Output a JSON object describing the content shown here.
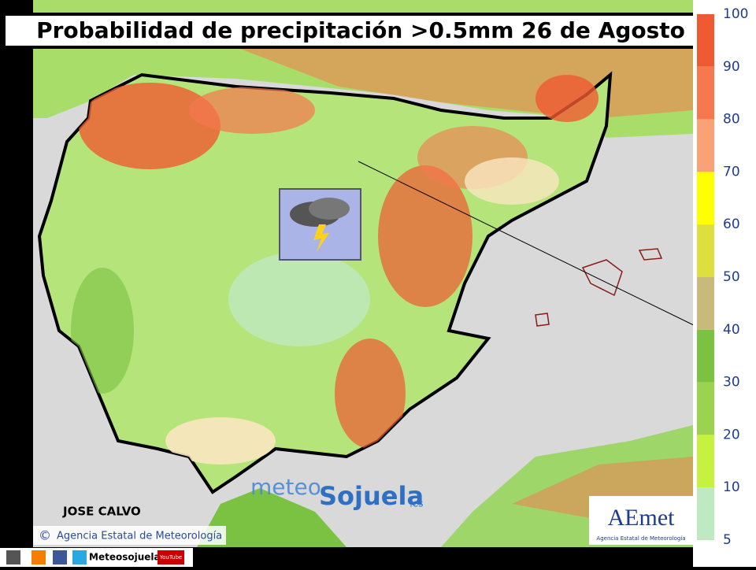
{
  "title": "Probabilidad de precipitación >0.5mm 26 de Agosto",
  "legend": {
    "labels": [
      "100",
      "90",
      "80",
      "70",
      "60",
      "50",
      "40",
      "30",
      "20",
      "10",
      "5"
    ],
    "colors": [
      "#f05a32",
      "#f5784f",
      "#f9a276",
      "#ffff00",
      "#dede40",
      "#c9b97a",
      "#7cc242",
      "#9bd24f",
      "#c6f23f",
      "#bfe9c0"
    ]
  },
  "author": "JOSE CALVO",
  "copyright": {
    "symbol": "©",
    "text": "Agencia Estatal de Meteorología"
  },
  "watermark": {
    "meteo": "meteo",
    "sojuela": "Sojuela",
    "domain": ".es"
  },
  "logo": {
    "name": "AEmet",
    "subtitle": "Agencia Estatal de Meteorología"
  },
  "social": {
    "name": "Meteosojuela",
    "youtube": "YouTube"
  }
}
